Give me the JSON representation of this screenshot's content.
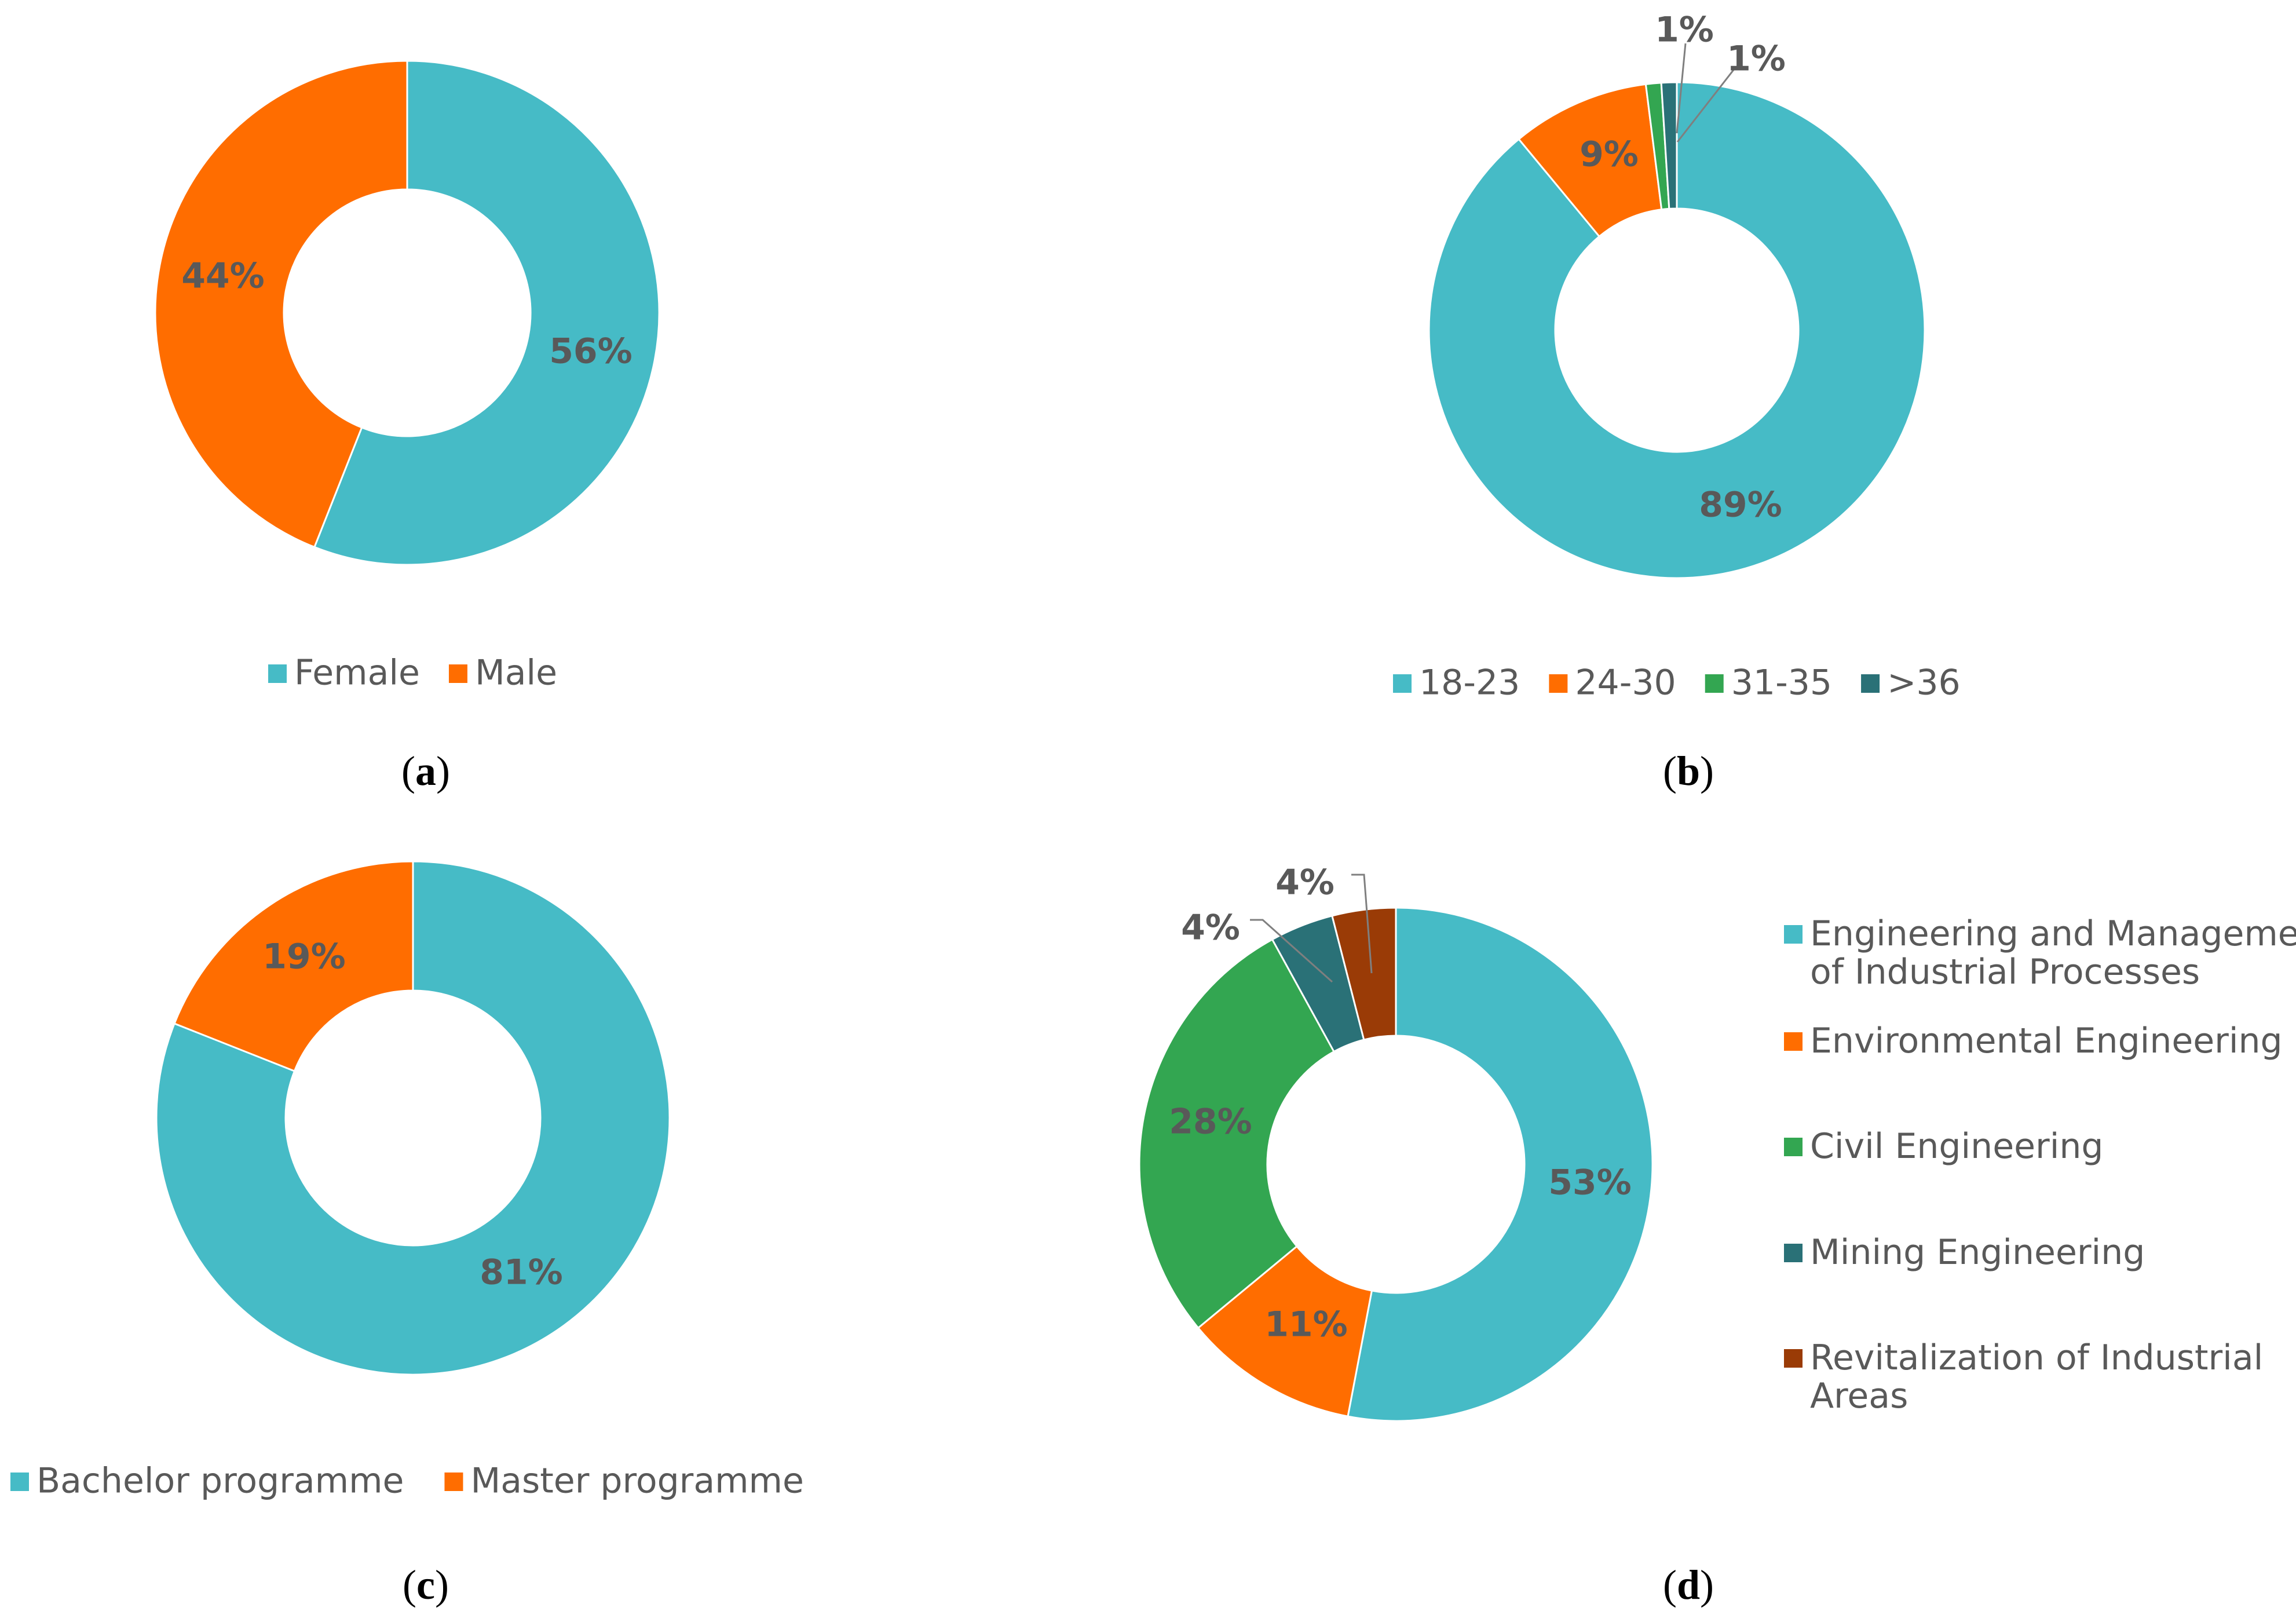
{
  "colors": {
    "teal": "#46BBC6",
    "orange": "#FF6D00",
    "green": "#33A651",
    "dark_teal": "#2A7177",
    "brown": "#9A3B06",
    "label": "#595959"
  },
  "chart_data": [
    {
      "type": "donut",
      "panel_label": "a",
      "categories": [
        "Female",
        "Male"
      ],
      "values": [
        56,
        44
      ],
      "value_labels": [
        "56%",
        "44%"
      ],
      "colors": [
        "#46BBC6",
        "#FF6D00"
      ],
      "legend_position": "bottom"
    },
    {
      "type": "donut",
      "panel_label": "b",
      "categories": [
        "18-23",
        "24-30",
        "31-35",
        ">36"
      ],
      "values": [
        89,
        9,
        1,
        1
      ],
      "value_labels": [
        "89%",
        "9%",
        "1%",
        "1%"
      ],
      "colors": [
        "#46BBC6",
        "#FF6D00",
        "#33A651",
        "#2A7177"
      ],
      "legend_position": "bottom"
    },
    {
      "type": "donut",
      "panel_label": "c",
      "categories": [
        "Bachelor programme",
        "Master programme"
      ],
      "values": [
        81,
        19
      ],
      "value_labels": [
        "81%",
        "19%"
      ],
      "colors": [
        "#46BBC6",
        "#FF6D00"
      ],
      "legend_position": "bottom"
    },
    {
      "type": "donut",
      "panel_label": "d",
      "categories": [
        "Engineering and Management of Industrial Processes",
        "Environmental Engineering",
        "Civil Engineering",
        "Mining Engineering",
        "Revitalization of Industrial Areas"
      ],
      "legend_lines": [
        [
          "Engineering and Management",
          "of Industrial Processes"
        ],
        [
          "Environmental Engineering"
        ],
        [
          "Civil Engineering"
        ],
        [
          "Mining Engineering"
        ],
        [
          "Revitalization of Industrial",
          "Areas"
        ]
      ],
      "values": [
        53,
        11,
        28,
        4,
        4
      ],
      "value_labels": [
        "53%",
        "11%",
        "28%",
        "4%",
        "4%"
      ],
      "colors": [
        "#46BBC6",
        "#FF6D00",
        "#33A651",
        "#2A7177",
        "#9A3B06"
      ],
      "legend_position": "right"
    }
  ]
}
